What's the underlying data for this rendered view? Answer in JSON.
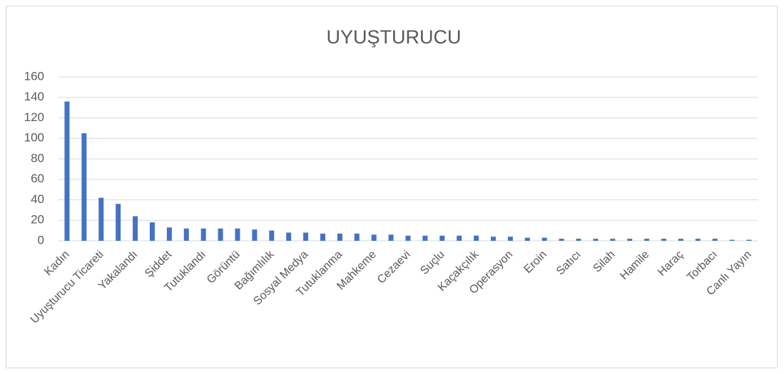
{
  "chart_data": {
    "type": "bar",
    "title": "UYUŞTURUCU",
    "categories": [
      "Kadın",
      null,
      "Uyuşturucu Ticareti",
      null,
      "Yakalandı",
      null,
      "Şiddet",
      null,
      "Tutuklandı",
      null,
      "Görüntü",
      null,
      "Bağımlılık",
      null,
      "Sosyal Medya",
      null,
      "Tutuklanma",
      null,
      "Mahkeme",
      null,
      "Cezaevi",
      null,
      "Suçlu",
      null,
      "Kaçakçılık",
      null,
      "Operasyon",
      null,
      "Eroin",
      null,
      "Satıcı",
      null,
      "Silah",
      null,
      "Hamile",
      null,
      "Haraç",
      null,
      "Torbacı",
      null,
      "Canlı Yayın"
    ],
    "values": [
      136,
      105,
      42,
      36,
      24,
      18,
      13,
      12,
      12,
      12,
      12,
      11,
      10,
      8,
      8,
      7,
      7,
      7,
      6,
      6,
      5,
      5,
      5,
      5,
      5,
      4,
      4,
      3,
      3,
      2,
      2,
      2,
      2,
      2,
      2,
      2,
      2,
      2,
      2,
      1,
      1
    ],
    "color": "#4472c4",
    "ylim": [
      0,
      160
    ],
    "yticks": [
      0,
      20,
      40,
      60,
      80,
      100,
      120,
      140,
      160
    ],
    "grid": true
  }
}
